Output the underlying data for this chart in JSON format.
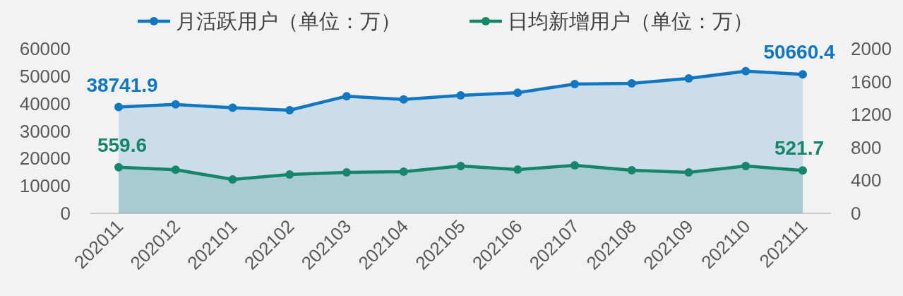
{
  "chart_data": {
    "type": "area",
    "categories": [
      "202011",
      "202012",
      "202101",
      "202102",
      "202103",
      "202104",
      "202105",
      "202106",
      "202107",
      "202108",
      "202109",
      "202110",
      "202111"
    ],
    "series": [
      {
        "name": "月活跃用户（单位：万）",
        "color": "#1177c2",
        "values": [
          38741.9,
          39700,
          38500,
          37600,
          42700,
          41500,
          43000,
          44000,
          47100,
          47400,
          49200,
          51800,
          50660.4
        ],
        "value_labels": [
          "38741.9",
          null,
          null,
          null,
          null,
          null,
          null,
          null,
          null,
          null,
          null,
          null,
          "50660.4"
        ]
      },
      {
        "name": "日均新增用户（单位：万）",
        "color": "#16866a",
        "axis": "y2",
        "values": [
          559.6,
          530,
          412,
          472,
          498,
          506,
          575,
          532,
          583,
          523,
          498,
          575,
          521.7
        ],
        "value_labels": [
          "559.6",
          null,
          null,
          null,
          null,
          null,
          null,
          null,
          null,
          null,
          null,
          null,
          "521.7"
        ]
      }
    ],
    "ylim": [
      0,
      60000
    ],
    "yticks": [
      0,
      10000,
      20000,
      30000,
      40000,
      50000,
      60000
    ],
    "y2lim": [
      0,
      2000
    ],
    "y2ticks": [
      0,
      400,
      800,
      1200,
      1600,
      2000
    ],
    "marker": "circle",
    "grid": false,
    "legend": "top"
  }
}
